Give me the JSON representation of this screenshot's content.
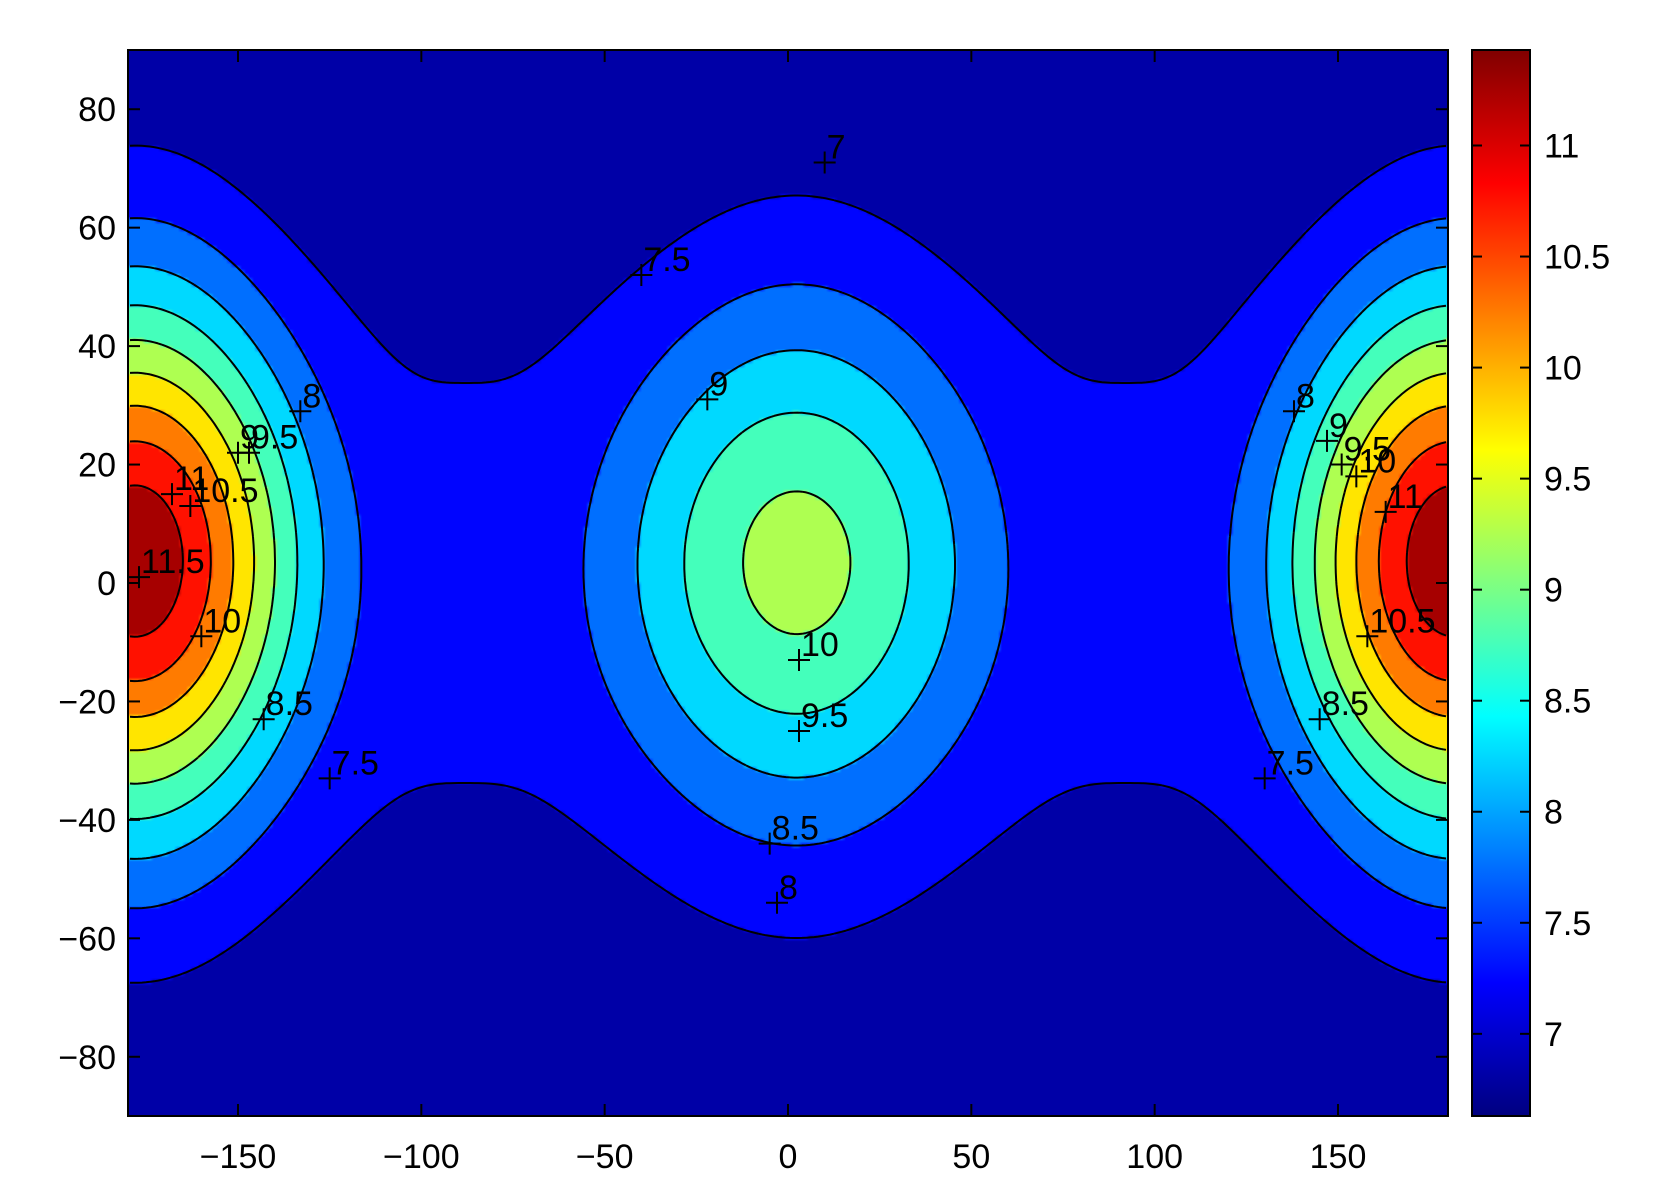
{
  "chart_data": {
    "type": "contour",
    "title": "",
    "xlabel": "",
    "ylabel": "",
    "xlim": [
      -180,
      180
    ],
    "ylim": [
      -90,
      90
    ],
    "xticks": [
      -150,
      -100,
      -50,
      0,
      50,
      100,
      150
    ],
    "yticks": [
      -80,
      -60,
      -40,
      -20,
      0,
      20,
      40,
      60,
      80
    ],
    "contour_levels": [
      7,
      7.5,
      8,
      8.5,
      9,
      9.5,
      10,
      10.5,
      11,
      11.5
    ],
    "colormap": "jet",
    "colorbar": {
      "range": [
        6.63,
        11.43
      ],
      "ticks": [
        7,
        7.5,
        8,
        8.5,
        9,
        9.5,
        10,
        10.5,
        11
      ],
      "placement": "right"
    },
    "field_peaks": [
      {
        "lon": 180,
        "lat": 3,
        "value": 11.6
      },
      {
        "lon": 5,
        "lat": 5,
        "value": 10.2
      }
    ],
    "contour_labels": [
      {
        "text": "7",
        "x": 10,
        "y": 71
      },
      {
        "text": "7.5",
        "x": -40,
        "y": 52
      },
      {
        "text": "7.5",
        "x": -125,
        "y": -33
      },
      {
        "text": "7.5",
        "x": 130,
        "y": -33
      },
      {
        "text": "8",
        "x": -133,
        "y": 29
      },
      {
        "text": "8",
        "x": -3,
        "y": -54
      },
      {
        "text": "8",
        "x": 138,
        "y": 29
      },
      {
        "text": "8.5",
        "x": -143,
        "y": -23
      },
      {
        "text": "8.5",
        "x": -5,
        "y": -44
      },
      {
        "text": "8.5",
        "x": 145,
        "y": -23
      },
      {
        "text": "9",
        "x": -22,
        "y": 31
      },
      {
        "text": "9",
        "x": -150,
        "y": 22
      },
      {
        "text": "9",
        "x": 147,
        "y": 24
      },
      {
        "text": "9.5",
        "x": -147,
        "y": 22
      },
      {
        "text": "9.5",
        "x": 3,
        "y": -25
      },
      {
        "text": "9.5",
        "x": 151,
        "y": 20
      },
      {
        "text": "10",
        "x": 3,
        "y": -13
      },
      {
        "text": "10",
        "x": -160,
        "y": -9
      },
      {
        "text": "10",
        "x": 155,
        "y": 18
      },
      {
        "text": "10.5",
        "x": -163,
        "y": 13
      },
      {
        "text": "10.5",
        "x": 158,
        "y": -9
      },
      {
        "text": "11",
        "x": -168,
        "y": 15
      },
      {
        "text": "11",
        "x": 163,
        "y": 12
      },
      {
        "text": "11.5",
        "x": -177,
        "y": 1
      }
    ]
  }
}
